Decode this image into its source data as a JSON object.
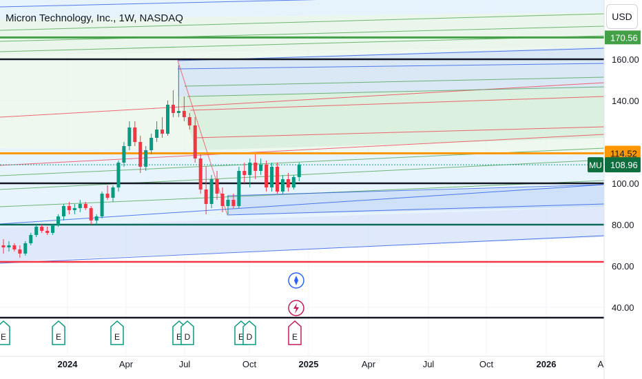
{
  "title": "Micron Technology, Inc., 1W, NASDAQ",
  "currency": "USD",
  "colors": {
    "up": "#089981",
    "down": "#f23645",
    "green_line": "#43a047",
    "blue_line": "#1e53e5",
    "orange_line": "#ff9800",
    "red_line": "#f23645",
    "dark_line": "#131722",
    "teal_line": "#0b6a5a",
    "drawing_red": "#e5303a"
  },
  "chart_data": {
    "type": "candlestick",
    "symbol": "MU",
    "interval": "1W",
    "exchange": "NASDAQ",
    "y_axis": {
      "ticks": [
        40,
        60,
        80,
        100,
        140,
        160
      ],
      "tick_labels": [
        "40.00",
        "60.00",
        "80.00",
        "100.00",
        "140.00",
        "160.00"
      ],
      "range": [
        27,
        186
      ]
    },
    "x_axis": {
      "ticks": [
        "2024",
        "Apr",
        "Jul",
        "Oct",
        "2025",
        "Apr",
        "Jul",
        "Oct",
        "2026",
        "A"
      ],
      "bold_ticks": [
        "2024",
        "2025",
        "2026"
      ]
    },
    "candles": [
      {
        "o": 70,
        "h": 73,
        "l": 66,
        "c": 69
      },
      {
        "o": 69,
        "h": 72,
        "l": 67,
        "c": 70
      },
      {
        "o": 70,
        "h": 71,
        "l": 67,
        "c": 68
      },
      {
        "o": 68,
        "h": 70,
        "l": 64,
        "c": 66
      },
      {
        "o": 66,
        "h": 72,
        "l": 65,
        "c": 71
      },
      {
        "o": 71,
        "h": 76,
        "l": 70,
        "c": 75
      },
      {
        "o": 75,
        "h": 80,
        "l": 74,
        "c": 79
      },
      {
        "o": 79,
        "h": 80,
        "l": 76,
        "c": 77
      },
      {
        "o": 77,
        "h": 79,
        "l": 75,
        "c": 76
      },
      {
        "o": 76,
        "h": 80,
        "l": 75,
        "c": 80
      },
      {
        "o": 80,
        "h": 85,
        "l": 79,
        "c": 84
      },
      {
        "o": 84,
        "h": 90,
        "l": 82,
        "c": 89
      },
      {
        "o": 89,
        "h": 91,
        "l": 85,
        "c": 87
      },
      {
        "o": 87,
        "h": 90,
        "l": 85,
        "c": 88
      },
      {
        "o": 88,
        "h": 92,
        "l": 86,
        "c": 90
      },
      {
        "o": 90,
        "h": 91,
        "l": 87,
        "c": 88
      },
      {
        "o": 88,
        "h": 89,
        "l": 80,
        "c": 82
      },
      {
        "o": 82,
        "h": 85,
        "l": 80,
        "c": 84
      },
      {
        "o": 84,
        "h": 96,
        "l": 83,
        "c": 95
      },
      {
        "o": 95,
        "h": 99,
        "l": 92,
        "c": 93
      },
      {
        "o": 93,
        "h": 99,
        "l": 91,
        "c": 98
      },
      {
        "o": 98,
        "h": 111,
        "l": 96,
        "c": 110
      },
      {
        "o": 110,
        "h": 120,
        "l": 108,
        "c": 118
      },
      {
        "o": 118,
        "h": 130,
        "l": 116,
        "c": 127
      },
      {
        "o": 127,
        "h": 130,
        "l": 118,
        "c": 120
      },
      {
        "o": 120,
        "h": 123,
        "l": 105,
        "c": 108
      },
      {
        "o": 108,
        "h": 118,
        "l": 106,
        "c": 116
      },
      {
        "o": 116,
        "h": 124,
        "l": 114,
        "c": 122
      },
      {
        "o": 122,
        "h": 130,
        "l": 120,
        "c": 126
      },
      {
        "o": 126,
        "h": 132,
        "l": 122,
        "c": 124
      },
      {
        "o": 124,
        "h": 140,
        "l": 123,
        "c": 138
      },
      {
        "o": 138,
        "h": 145,
        "l": 132,
        "c": 134
      },
      {
        "o": 134,
        "h": 157,
        "l": 132,
        "c": 135
      },
      {
        "o": 135,
        "h": 142,
        "l": 130,
        "c": 132
      },
      {
        "o": 132,
        "h": 134,
        "l": 126,
        "c": 128
      },
      {
        "o": 128,
        "h": 132,
        "l": 110,
        "c": 112
      },
      {
        "o": 112,
        "h": 114,
        "l": 95,
        "c": 97
      },
      {
        "o": 97,
        "h": 108,
        "l": 85,
        "c": 90
      },
      {
        "o": 90,
        "h": 104,
        "l": 88,
        "c": 102
      },
      {
        "o": 102,
        "h": 106,
        "l": 92,
        "c": 95
      },
      {
        "o": 95,
        "h": 98,
        "l": 86,
        "c": 89
      },
      {
        "o": 89,
        "h": 94,
        "l": 85,
        "c": 92
      },
      {
        "o": 92,
        "h": 95,
        "l": 88,
        "c": 89
      },
      {
        "o": 89,
        "h": 108,
        "l": 88,
        "c": 106
      },
      {
        "o": 106,
        "h": 110,
        "l": 100,
        "c": 104
      },
      {
        "o": 104,
        "h": 112,
        "l": 98,
        "c": 110
      },
      {
        "o": 110,
        "h": 114,
        "l": 102,
        "c": 106
      },
      {
        "o": 106,
        "h": 112,
        "l": 104,
        "c": 109
      },
      {
        "o": 109,
        "h": 111,
        "l": 96,
        "c": 98
      },
      {
        "o": 98,
        "h": 110,
        "l": 96,
        "c": 108
      },
      {
        "o": 108,
        "h": 110,
        "l": 95,
        "c": 96
      },
      {
        "o": 96,
        "h": 104,
        "l": 95,
        "c": 102
      },
      {
        "o": 102,
        "h": 105,
        "l": 96,
        "c": 98
      },
      {
        "o": 98,
        "h": 104,
        "l": 97,
        "c": 103
      },
      {
        "o": 103,
        "h": 110,
        "l": 101,
        "c": 108.96
      }
    ],
    "horizontal_lines": [
      {
        "value": 170.56,
        "color": "green"
      },
      {
        "value": 160,
        "color": "black"
      },
      {
        "value": 114.52,
        "color": "orange"
      },
      {
        "value": 100,
        "color": "black"
      },
      {
        "value": 80,
        "color": "teal"
      },
      {
        "value": 62,
        "color": "red"
      },
      {
        "value": 35,
        "color": "black"
      }
    ],
    "price_labels": [
      {
        "text": "170.56",
        "color": "green"
      },
      {
        "text": "114.52",
        "color": "orange"
      },
      {
        "text": "108.96",
        "color": "green",
        "ticker": "MU"
      }
    ],
    "drawing_path": [
      [
        112,
        114.6
      ],
      [
        115,
        120.0
      ],
      [
        118,
        118.3
      ],
      [
        123,
        128.9
      ],
      [
        126,
        130.9
      ],
      [
        130,
        127.6
      ],
      [
        135,
        154.2
      ],
      [
        140,
        186.0
      ]
    ],
    "events": [
      {
        "icon": "dividend-icon",
        "label": "E"
      },
      {
        "icon": "dividend-icon",
        "label": "E"
      },
      {
        "icon": "dividend-icon",
        "label": "E"
      },
      {
        "icon": "dividend-icon",
        "label": "E"
      },
      {
        "icon": "dividend-icon",
        "label": "D"
      },
      {
        "icon": "dividend-icon",
        "label": "E"
      },
      {
        "icon": "dividend-icon",
        "label": "D"
      },
      {
        "icon": "earnings-icon",
        "label": "E"
      }
    ]
  }
}
